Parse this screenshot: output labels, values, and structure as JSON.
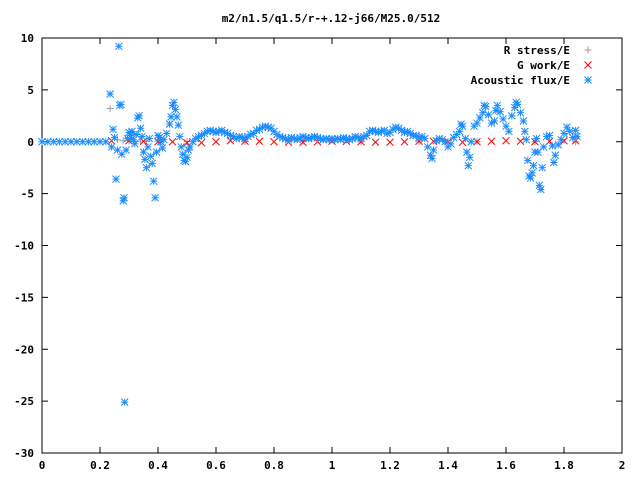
{
  "chart_data": {
    "type": "scatter",
    "title": "m2/n1.5/q1.5/r-+.12-j66/M25.0/512",
    "xlabel": "",
    "ylabel": "",
    "xlim": [
      0,
      2
    ],
    "ylim": [
      -30,
      10
    ],
    "x_ticks": [
      0,
      0.2,
      0.4,
      0.6,
      0.8,
      1,
      1.2,
      1.4,
      1.6,
      1.8,
      2
    ],
    "x_tick_labels": [
      "0",
      "0.2",
      "0.4",
      "0.6",
      "0.8",
      "1",
      "1.2",
      "1.4",
      "1.6",
      "1.8",
      "2"
    ],
    "y_ticks": [
      -30,
      -25,
      -20,
      -15,
      -10,
      -5,
      0,
      5,
      10
    ],
    "y_tick_labels": [
      "-30",
      "-25",
      "-20",
      "-15",
      "-10",
      "-5",
      "0",
      "5",
      "10"
    ],
    "grid": false,
    "legend_position": "top-right",
    "series": [
      {
        "name": "R stress/E",
        "marker": "plus",
        "color": "#a0a0a0",
        "points": [
          [
            0.235,
            3.2
          ],
          [
            0.26,
            0.2
          ],
          [
            0.28,
            0.1
          ],
          [
            0.3,
            0.1
          ],
          [
            0.32,
            0.05
          ],
          [
            0.34,
            0.05
          ],
          [
            0.36,
            0.05
          ],
          [
            0.4,
            0.05
          ],
          [
            0.5,
            0.02
          ],
          [
            0.7,
            0.02
          ],
          [
            0.9,
            0.0
          ],
          [
            1.1,
            0.0
          ],
          [
            1.3,
            0.0
          ],
          [
            1.5,
            0.0
          ],
          [
            1.7,
            0.0
          ],
          [
            1.84,
            0.0
          ]
        ]
      },
      {
        "name": "G work/E",
        "marker": "cross",
        "color": "#ff0000",
        "points": [
          [
            0.24,
            0.1
          ],
          [
            0.3,
            0.1
          ],
          [
            0.35,
            0.05
          ],
          [
            0.4,
            0.0
          ],
          [
            0.45,
            0.0
          ],
          [
            0.5,
            -0.1
          ],
          [
            0.55,
            -0.1
          ],
          [
            0.6,
            0.0
          ],
          [
            0.65,
            0.1
          ],
          [
            0.7,
            0.05
          ],
          [
            0.75,
            0.05
          ],
          [
            0.8,
            0.0
          ],
          [
            0.85,
            -0.05
          ],
          [
            0.9,
            -0.05
          ],
          [
            0.95,
            0.0
          ],
          [
            1.0,
            0.05
          ],
          [
            1.05,
            0.05
          ],
          [
            1.1,
            0.0
          ],
          [
            1.15,
            -0.05
          ],
          [
            1.2,
            -0.05
          ],
          [
            1.25,
            0.0
          ],
          [
            1.3,
            0.05
          ],
          [
            1.35,
            0.05
          ],
          [
            1.4,
            0.0
          ],
          [
            1.45,
            -0.05
          ],
          [
            1.5,
            0.0
          ],
          [
            1.55,
            0.05
          ],
          [
            1.6,
            0.1
          ],
          [
            1.65,
            0.05
          ],
          [
            1.7,
            0.0
          ],
          [
            1.75,
            0.05
          ],
          [
            1.8,
            0.1
          ],
          [
            1.84,
            0.1
          ]
        ]
      },
      {
        "name": "Acoustic flux/E",
        "marker": "star",
        "color": "#1a8cff",
        "points": [
          [
            0.0,
            0
          ],
          [
            0.02,
            0
          ],
          [
            0.04,
            0
          ],
          [
            0.06,
            0
          ],
          [
            0.08,
            0
          ],
          [
            0.1,
            0
          ],
          [
            0.12,
            0
          ],
          [
            0.14,
            0
          ],
          [
            0.16,
            0
          ],
          [
            0.18,
            0
          ],
          [
            0.2,
            0
          ],
          [
            0.22,
            0
          ],
          [
            0.235,
            4.6
          ],
          [
            0.24,
            -0.5
          ],
          [
            0.245,
            1.2
          ],
          [
            0.25,
            0.4
          ],
          [
            0.255,
            -3.6
          ],
          [
            0.26,
            -0.8
          ],
          [
            0.265,
            9.2
          ],
          [
            0.268,
            3.5
          ],
          [
            0.272,
            3.6
          ],
          [
            0.275,
            -1.2
          ],
          [
            0.28,
            -5.7
          ],
          [
            0.283,
            -5.4
          ],
          [
            0.285,
            -25.1
          ],
          [
            0.29,
            -0.8
          ],
          [
            0.295,
            0.3
          ],
          [
            0.3,
            0.9
          ],
          [
            0.305,
            0.6
          ],
          [
            0.31,
            1.0
          ],
          [
            0.315,
            0.2
          ],
          [
            0.32,
            -0.2
          ],
          [
            0.325,
            0.7
          ],
          [
            0.33,
            2.3
          ],
          [
            0.335,
            2.5
          ],
          [
            0.34,
            1.3
          ],
          [
            0.345,
            0.5
          ],
          [
            0.35,
            -1.0
          ],
          [
            0.355,
            -1.7
          ],
          [
            0.36,
            -2.5
          ],
          [
            0.365,
            -0.5
          ],
          [
            0.37,
            0.3
          ],
          [
            0.375,
            -1.4
          ],
          [
            0.38,
            -2.1
          ],
          [
            0.385,
            -3.8
          ],
          [
            0.39,
            -5.4
          ],
          [
            0.395,
            -1.0
          ],
          [
            0.4,
            0.6
          ],
          [
            0.405,
            0.4
          ],
          [
            0.41,
            0.0
          ],
          [
            0.415,
            -0.6
          ],
          [
            0.42,
            0.2
          ],
          [
            0.43,
            0.8
          ],
          [
            0.44,
            1.7
          ],
          [
            0.445,
            2.4
          ],
          [
            0.45,
            3.5
          ],
          [
            0.455,
            3.8
          ],
          [
            0.46,
            3.1
          ],
          [
            0.465,
            2.4
          ],
          [
            0.47,
            1.6
          ],
          [
            0.475,
            0.5
          ],
          [
            0.48,
            -0.5
          ],
          [
            0.485,
            -1.2
          ],
          [
            0.49,
            -1.8
          ],
          [
            0.495,
            -1.9
          ],
          [
            0.5,
            -1.5
          ],
          [
            0.505,
            -0.8
          ],
          [
            0.51,
            -0.5
          ],
          [
            0.52,
            0.0
          ],
          [
            0.53,
            0.3
          ],
          [
            0.54,
            0.5
          ],
          [
            0.55,
            0.6
          ],
          [
            0.56,
            0.8
          ],
          [
            0.57,
            1.0
          ],
          [
            0.58,
            1.1
          ],
          [
            0.59,
            1.0
          ],
          [
            0.6,
            0.9
          ],
          [
            0.61,
            1.0
          ],
          [
            0.62,
            1.1
          ],
          [
            0.63,
            0.9
          ],
          [
            0.64,
            0.8
          ],
          [
            0.65,
            0.6
          ],
          [
            0.66,
            0.5
          ],
          [
            0.67,
            0.3
          ],
          [
            0.68,
            0.5
          ],
          [
            0.69,
            0.4
          ],
          [
            0.7,
            0.3
          ],
          [
            0.71,
            0.5
          ],
          [
            0.72,
            0.7
          ],
          [
            0.73,
            0.8
          ],
          [
            0.74,
            1.1
          ],
          [
            0.75,
            1.2
          ],
          [
            0.76,
            1.4
          ],
          [
            0.77,
            1.5
          ],
          [
            0.78,
            1.4
          ],
          [
            0.79,
            1.3
          ],
          [
            0.8,
            1.0
          ],
          [
            0.81,
            0.7
          ],
          [
            0.82,
            0.5
          ],
          [
            0.83,
            0.4
          ],
          [
            0.84,
            0.3
          ],
          [
            0.85,
            0.2
          ],
          [
            0.86,
            0.4
          ],
          [
            0.87,
            0.3
          ],
          [
            0.88,
            0.2
          ],
          [
            0.89,
            0.4
          ],
          [
            0.9,
            0.5
          ],
          [
            0.91,
            0.4
          ],
          [
            0.92,
            0.3
          ],
          [
            0.93,
            0.4
          ],
          [
            0.94,
            0.5
          ],
          [
            0.95,
            0.4
          ],
          [
            0.96,
            0.3
          ],
          [
            0.97,
            0.2
          ],
          [
            0.98,
            0.3
          ],
          [
            0.99,
            0.2
          ],
          [
            1.0,
            0.3
          ],
          [
            1.01,
            0.2
          ],
          [
            1.02,
            0.3
          ],
          [
            1.03,
            0.2
          ],
          [
            1.04,
            0.4
          ],
          [
            1.05,
            0.3
          ],
          [
            1.06,
            0.2
          ],
          [
            1.07,
            0.3
          ],
          [
            1.08,
            0.5
          ],
          [
            1.09,
            0.4
          ],
          [
            1.1,
            0.3
          ],
          [
            1.11,
            0.5
          ],
          [
            1.12,
            0.6
          ],
          [
            1.13,
            1.0
          ],
          [
            1.14,
            1.1
          ],
          [
            1.15,
            1.0
          ],
          [
            1.16,
            0.9
          ],
          [
            1.17,
            1.0
          ],
          [
            1.18,
            1.1
          ],
          [
            1.19,
            0.8
          ],
          [
            1.2,
            0.9
          ],
          [
            1.21,
            1.2
          ],
          [
            1.22,
            1.4
          ],
          [
            1.23,
            1.3
          ],
          [
            1.24,
            1.1
          ],
          [
            1.25,
            0.9
          ],
          [
            1.26,
            1.0
          ],
          [
            1.27,
            0.8
          ],
          [
            1.28,
            0.6
          ],
          [
            1.29,
            0.6
          ],
          [
            1.3,
            0.4
          ],
          [
            1.31,
            0.5
          ],
          [
            1.32,
            0.3
          ],
          [
            1.33,
            -0.5
          ],
          [
            1.34,
            -1.3
          ],
          [
            1.345,
            -1.6
          ],
          [
            1.35,
            -0.8
          ],
          [
            1.36,
            0.1
          ],
          [
            1.37,
            0.3
          ],
          [
            1.38,
            0.2
          ],
          [
            1.39,
            0.0
          ],
          [
            1.4,
            -0.5
          ],
          [
            1.41,
            -0.2
          ],
          [
            1.42,
            0.4
          ],
          [
            1.43,
            0.7
          ],
          [
            1.44,
            1.0
          ],
          [
            1.445,
            1.7
          ],
          [
            1.45,
            1.5
          ],
          [
            1.46,
            0.3
          ],
          [
            1.465,
            -1.0
          ],
          [
            1.47,
            -2.3
          ],
          [
            1.475,
            -1.5
          ],
          [
            1.48,
            0.0
          ],
          [
            1.49,
            1.5
          ],
          [
            1.5,
            1.8
          ],
          [
            1.51,
            2.3
          ],
          [
            1.52,
            2.8
          ],
          [
            1.525,
            3.5
          ],
          [
            1.53,
            3.4
          ],
          [
            1.54,
            2.6
          ],
          [
            1.55,
            1.8
          ],
          [
            1.56,
            2.0
          ],
          [
            1.565,
            3.0
          ],
          [
            1.57,
            3.5
          ],
          [
            1.58,
            2.9
          ],
          [
            1.59,
            2.2
          ],
          [
            1.6,
            1.5
          ],
          [
            1.61,
            1.0
          ],
          [
            1.62,
            2.5
          ],
          [
            1.63,
            3.3
          ],
          [
            1.635,
            3.8
          ],
          [
            1.64,
            3.6
          ],
          [
            1.65,
            2.8
          ],
          [
            1.66,
            2.0
          ],
          [
            1.665,
            1.0
          ],
          [
            1.67,
            0.2
          ],
          [
            1.675,
            -1.8
          ],
          [
            1.68,
            -3.3
          ],
          [
            1.685,
            -3.5
          ],
          [
            1.69,
            -3.0
          ],
          [
            1.695,
            -2.3
          ],
          [
            1.7,
            -1.0
          ],
          [
            1.705,
            0.3
          ],
          [
            1.71,
            -1.0
          ],
          [
            1.715,
            -4.2
          ],
          [
            1.72,
            -4.6
          ],
          [
            1.725,
            -2.5
          ],
          [
            1.73,
            -0.5
          ],
          [
            1.74,
            0.5
          ],
          [
            1.75,
            0.6
          ],
          [
            1.76,
            -0.4
          ],
          [
            1.765,
            -2.0
          ],
          [
            1.77,
            -1.3
          ],
          [
            1.78,
            -0.3
          ],
          [
            1.79,
            0.2
          ],
          [
            1.8,
            0.8
          ],
          [
            1.81,
            1.4
          ],
          [
            1.82,
            1.0
          ],
          [
            1.83,
            0.4
          ],
          [
            1.84,
            1.1
          ],
          [
            1.845,
            0.5
          ]
        ]
      }
    ]
  }
}
